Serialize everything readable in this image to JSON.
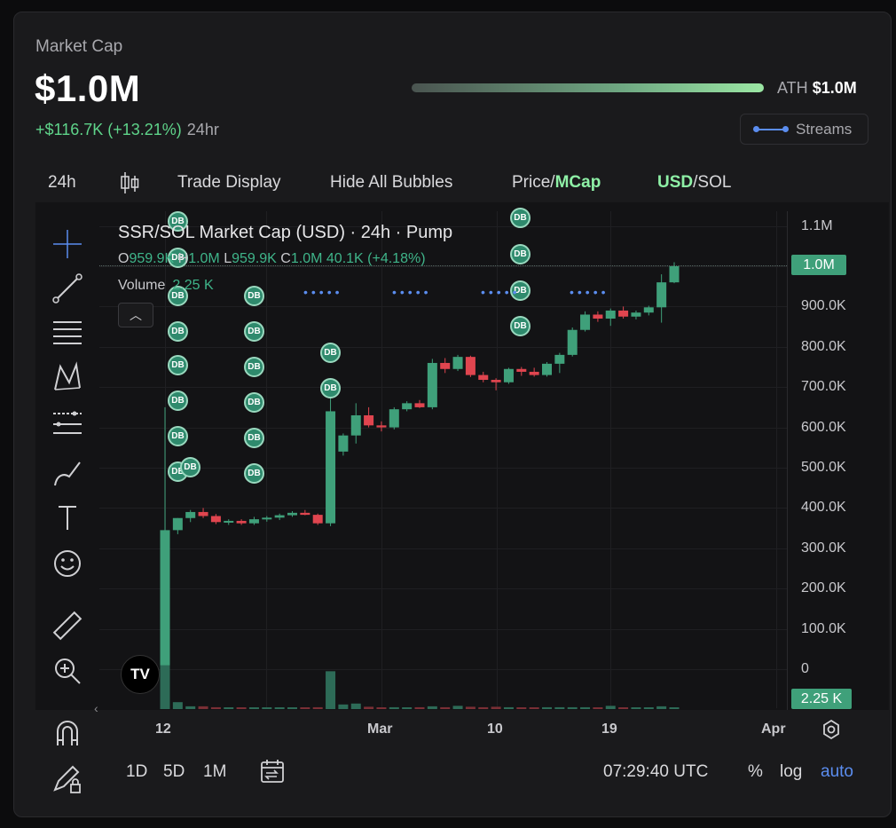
{
  "header": {
    "market_cap_label": "Market Cap",
    "market_cap_value": "$1.0M",
    "change": "+$116.7K (+13.21%)",
    "change_period": "24hr",
    "ath_label": "ATH",
    "ath_value": "$1.0M",
    "streams_label": "Streams"
  },
  "toolbar": {
    "interval": "24h",
    "trade_display": "Trade Display",
    "hide_bubbles": "Hide All Bubbles",
    "price_label": "Price/",
    "mcap_label": "MCap",
    "usd_label": "USD",
    "sol_label": "/SOL"
  },
  "legend": {
    "title": "SSR/SOL Market Cap (USD) · 24h · Pump",
    "o_label": "O",
    "o_value": "959.9K",
    "h_label": "H",
    "h_value": "1.0M",
    "l_label": "L",
    "l_value": "959.9K",
    "c_label": "C",
    "c_value": "1.0M",
    "change": "40.1K (+4.18%)",
    "volume_label": "Volume",
    "volume_value": "2.25 K",
    "collapse_icon": "chevron-up-icon"
  },
  "yaxis": [
    "1.1M",
    "1.0M",
    "900.0K",
    "800.0K",
    "700.0K",
    "600.0K",
    "500.0K",
    "400.0K",
    "300.0K",
    "200.0K",
    "100.0K",
    "0"
  ],
  "price_tag": "1.0M",
  "volume_tag": "2.25 K",
  "xaxis": [
    "12",
    "Mar",
    "10",
    "19",
    "Apr"
  ],
  "bubble_label": "DB",
  "bottom": {
    "r1": "1D",
    "r2": "5D",
    "r3": "1M",
    "time": "07:29:40 UTC",
    "percent": "%",
    "log": "log",
    "auto": "auto"
  },
  "colors": {
    "up": "#3fa07a",
    "down": "#e0454f",
    "accent": "#5b8def",
    "ath_end": "#9be7a4"
  },
  "chart_data": {
    "type": "candlestick",
    "title": "SSR/SOL Market Cap (USD) · 24h · Pump",
    "ylim": [
      0,
      1100000
    ],
    "candles": [
      {
        "o": 0,
        "h": 650000,
        "l": 0,
        "c": 345000,
        "v": 0.95
      },
      {
        "o": 345000,
        "h": 375000,
        "l": 335000,
        "c": 375000,
        "v": 0.15
      },
      {
        "o": 375000,
        "h": 395000,
        "l": 365000,
        "c": 390000,
        "v": 0.06
      },
      {
        "o": 390000,
        "h": 400000,
        "l": 375000,
        "c": 380000,
        "v": 0.06
      },
      {
        "o": 380000,
        "h": 385000,
        "l": 360000,
        "c": 365000,
        "v": 0.04
      },
      {
        "o": 365000,
        "h": 372000,
        "l": 358000,
        "c": 368000,
        "v": 0.03
      },
      {
        "o": 368000,
        "h": 372000,
        "l": 358000,
        "c": 362000,
        "v": 0.03
      },
      {
        "o": 362000,
        "h": 378000,
        "l": 358000,
        "c": 372000,
        "v": 0.03
      },
      {
        "o": 372000,
        "h": 380000,
        "l": 366000,
        "c": 376000,
        "v": 0.03
      },
      {
        "o": 376000,
        "h": 386000,
        "l": 370000,
        "c": 382000,
        "v": 0.03
      },
      {
        "o": 382000,
        "h": 392000,
        "l": 378000,
        "c": 388000,
        "v": 0.03
      },
      {
        "o": 388000,
        "h": 395000,
        "l": 382000,
        "c": 383000,
        "v": 0.03
      },
      {
        "o": 383000,
        "h": 386000,
        "l": 358000,
        "c": 362000,
        "v": 0.04
      },
      {
        "o": 362000,
        "h": 680000,
        "l": 355000,
        "c": 640000,
        "v": 0.82
      },
      {
        "o": 540000,
        "h": 585000,
        "l": 530000,
        "c": 580000,
        "v": 0.1
      },
      {
        "o": 580000,
        "h": 660000,
        "l": 560000,
        "c": 630000,
        "v": 0.12
      },
      {
        "o": 630000,
        "h": 650000,
        "l": 600000,
        "c": 605000,
        "v": 0.05
      },
      {
        "o": 605000,
        "h": 615000,
        "l": 590000,
        "c": 600000,
        "v": 0.03
      },
      {
        "o": 600000,
        "h": 650000,
        "l": 595000,
        "c": 645000,
        "v": 0.04
      },
      {
        "o": 645000,
        "h": 665000,
        "l": 640000,
        "c": 660000,
        "v": 0.03
      },
      {
        "o": 660000,
        "h": 668000,
        "l": 648000,
        "c": 650000,
        "v": 0.04
      },
      {
        "o": 650000,
        "h": 770000,
        "l": 645000,
        "c": 760000,
        "v": 0.06
      },
      {
        "o": 760000,
        "h": 772000,
        "l": 735000,
        "c": 745000,
        "v": 0.04
      },
      {
        "o": 745000,
        "h": 780000,
        "l": 740000,
        "c": 775000,
        "v": 0.07
      },
      {
        "o": 775000,
        "h": 778000,
        "l": 725000,
        "c": 730000,
        "v": 0.05
      },
      {
        "o": 730000,
        "h": 738000,
        "l": 712000,
        "c": 718000,
        "v": 0.04
      },
      {
        "o": 718000,
        "h": 722000,
        "l": 692000,
        "c": 712000,
        "v": 0.05
      },
      {
        "o": 712000,
        "h": 748000,
        "l": 708000,
        "c": 745000,
        "v": 0.04
      },
      {
        "o": 745000,
        "h": 750000,
        "l": 728000,
        "c": 738000,
        "v": 0.03
      },
      {
        "o": 738000,
        "h": 748000,
        "l": 726000,
        "c": 730000,
        "v": 0.03
      },
      {
        "o": 730000,
        "h": 762000,
        "l": 726000,
        "c": 758000,
        "v": 0.04
      },
      {
        "o": 758000,
        "h": 785000,
        "l": 735000,
        "c": 780000,
        "v": 0.04
      },
      {
        "o": 780000,
        "h": 848000,
        "l": 776000,
        "c": 842000,
        "v": 0.04
      },
      {
        "o": 842000,
        "h": 888000,
        "l": 838000,
        "c": 880000,
        "v": 0.04
      },
      {
        "o": 880000,
        "h": 888000,
        "l": 862000,
        "c": 870000,
        "v": 0.03
      },
      {
        "o": 870000,
        "h": 895000,
        "l": 852000,
        "c": 890000,
        "v": 0.07
      },
      {
        "o": 890000,
        "h": 900000,
        "l": 870000,
        "c": 875000,
        "v": 0.03
      },
      {
        "o": 875000,
        "h": 890000,
        "l": 868000,
        "c": 885000,
        "v": 0.03
      },
      {
        "o": 885000,
        "h": 902000,
        "l": 878000,
        "c": 898000,
        "v": 0.03
      },
      {
        "o": 898000,
        "h": 980000,
        "l": 860000,
        "c": 960000,
        "v": 0.06
      },
      {
        "o": 960000,
        "h": 1010000,
        "l": 958000,
        "c": 1000000,
        "v": 0.02
      }
    ]
  }
}
